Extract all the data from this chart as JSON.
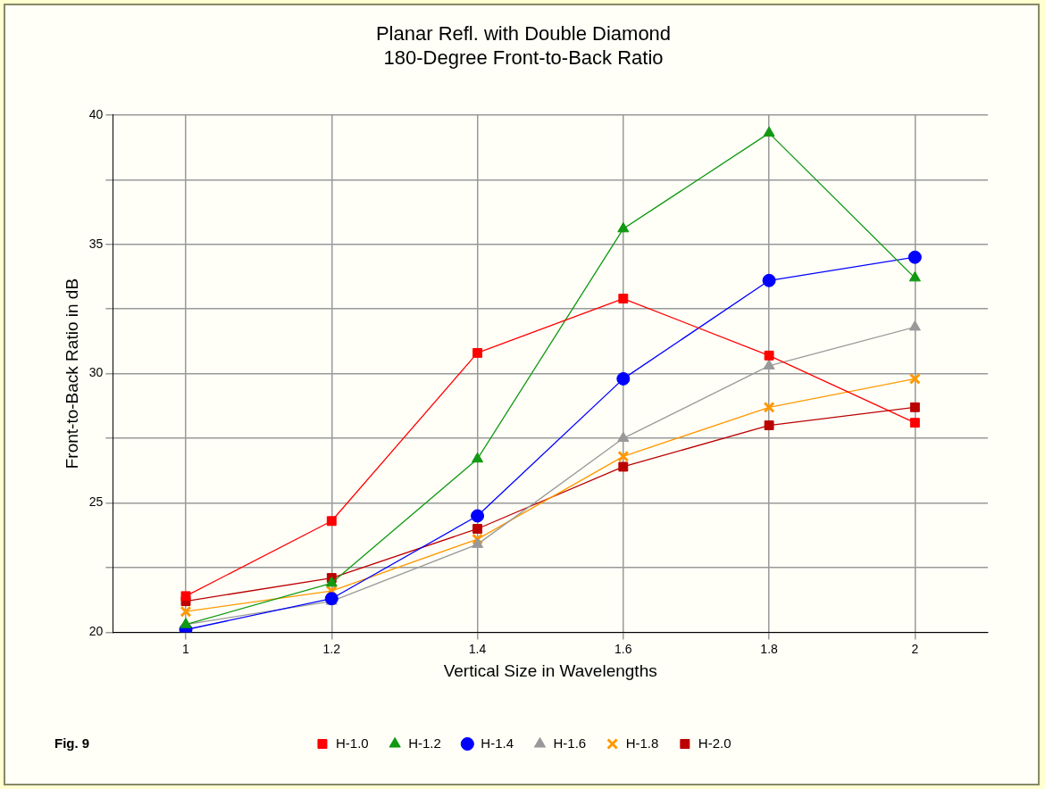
{
  "chart_data": {
    "type": "line",
    "title": [
      "Planar Refl. with Double Diamond",
      "180-Degree Front-to-Back Ratio"
    ],
    "xlabel": "Vertical Size in Wavelengths",
    "ylabel": "Front-to-Back Ratio in dB",
    "x": [
      1,
      1.2,
      1.4,
      1.6,
      1.8,
      2
    ],
    "xlim": [
      0.9,
      2.1
    ],
    "xticks": [
      1,
      1.2,
      1.4,
      1.6,
      1.8,
      2
    ],
    "ylim": [
      20,
      40
    ],
    "yticks": [
      20,
      {
        "value": 22.5,
        "label": null
      },
      25,
      {
        "value": 27.5,
        "label": null
      },
      30,
      {
        "value": 32.5,
        "label": null
      },
      35,
      {
        "value": 37.5,
        "label": null
      },
      40
    ],
    "grid": true,
    "legend": "bottom",
    "line_style": "solid",
    "annotations": [
      "Fig. 9"
    ],
    "series": [
      {
        "name": "H-1.0",
        "color": "#ff0000",
        "marker": "square",
        "values": [
          21.4,
          24.3,
          30.8,
          32.9,
          30.7,
          28.1
        ]
      },
      {
        "name": "H-1.2",
        "color": "#119911",
        "marker": "triangle",
        "values": [
          20.3,
          21.9,
          26.7,
          35.6,
          39.3,
          33.7
        ]
      },
      {
        "name": "H-1.4",
        "color": "#0000ff",
        "marker": "circle",
        "values": [
          20.1,
          21.3,
          24.5,
          29.8,
          33.6,
          34.5
        ]
      },
      {
        "name": "H-1.6",
        "color": "#999999",
        "marker": "triangle",
        "values": [
          20.3,
          21.2,
          23.4,
          27.5,
          30.3,
          31.8
        ]
      },
      {
        "name": "H-1.8",
        "color": "#ff9900",
        "marker": "cross",
        "values": [
          20.8,
          21.6,
          23.6,
          26.8,
          28.7,
          29.8
        ]
      },
      {
        "name": "H-2.0",
        "color": "#bb0000",
        "marker": "square",
        "values": [
          21.2,
          22.1,
          24.0,
          26.4,
          28.0,
          28.7
        ]
      }
    ]
  }
}
